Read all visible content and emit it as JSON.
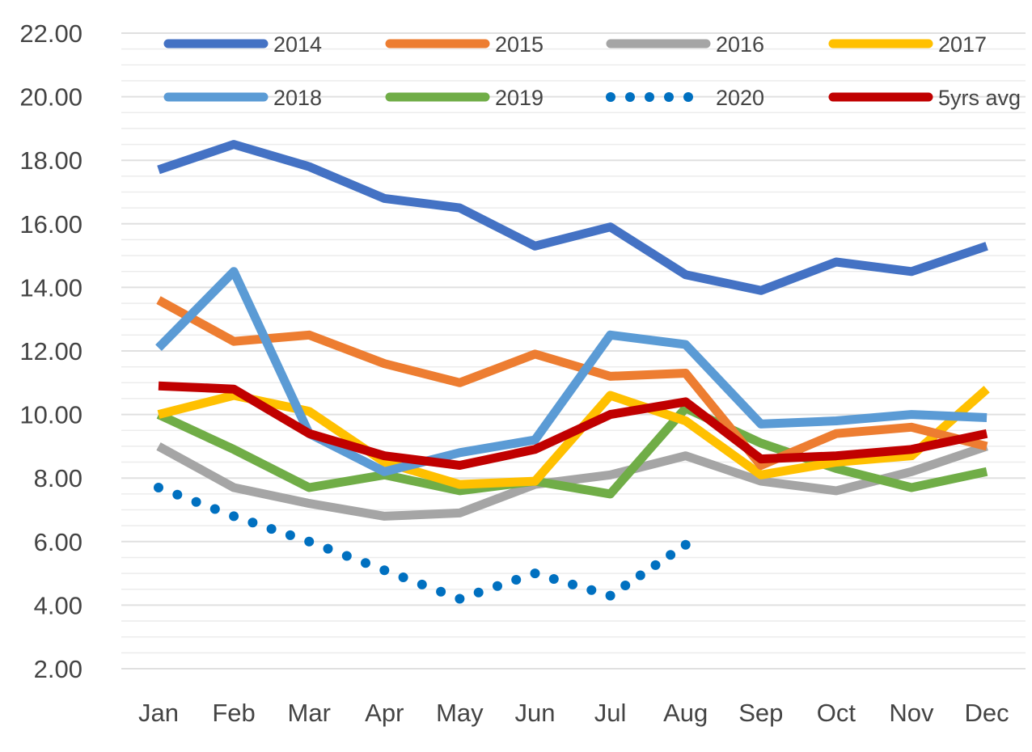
{
  "chart_data": {
    "type": "line",
    "title": "",
    "xlabel": "",
    "ylabel": "",
    "categories": [
      "Jan",
      "Feb",
      "Mar",
      "Apr",
      "May",
      "Jun",
      "Jul",
      "Aug",
      "Sep",
      "Oct",
      "Nov",
      "Dec"
    ],
    "ylim": [
      2.0,
      22.0
    ],
    "yticks": [
      "22.00",
      "20.00",
      "18.00",
      "16.00",
      "14.00",
      "12.00",
      "10.00",
      "8.00",
      "6.00",
      "4.00",
      "2.00"
    ],
    "ytick_values": [
      22,
      20,
      18,
      16,
      14,
      12,
      10,
      8,
      6,
      4,
      2
    ],
    "grid": true,
    "legend_position": "top",
    "series": [
      {
        "name": "2014",
        "color": "#4472C4",
        "style": "solid",
        "values": [
          17.7,
          18.5,
          17.8,
          16.8,
          16.5,
          15.3,
          15.9,
          14.4,
          13.9,
          14.8,
          14.5,
          15.3
        ]
      },
      {
        "name": "2015",
        "color": "#ED7D31",
        "style": "solid",
        "values": [
          13.6,
          12.3,
          12.5,
          11.6,
          11.0,
          11.9,
          11.2,
          11.3,
          8.4,
          9.4,
          9.6,
          9.0
        ]
      },
      {
        "name": "2016",
        "color": "#A5A5A5",
        "style": "solid",
        "values": [
          9.0,
          7.7,
          7.2,
          6.8,
          6.9,
          7.8,
          8.1,
          8.7,
          7.9,
          7.6,
          8.2,
          9.0
        ]
      },
      {
        "name": "2017",
        "color": "#FFC000",
        "style": "solid",
        "values": [
          10.0,
          10.6,
          10.1,
          8.5,
          7.8,
          7.9,
          10.6,
          9.8,
          8.1,
          8.5,
          8.7,
          10.8
        ]
      },
      {
        "name": "2018",
        "color": "#5B9BD5",
        "style": "solid",
        "values": [
          12.1,
          14.5,
          9.4,
          8.2,
          8.8,
          9.2,
          12.5,
          12.2,
          9.7,
          9.8,
          10.0,
          9.9
        ]
      },
      {
        "name": "2019",
        "color": "#70AD47",
        "style": "solid",
        "values": [
          10.0,
          8.9,
          7.7,
          8.1,
          7.6,
          7.9,
          7.5,
          10.2,
          9.1,
          8.3,
          7.7,
          8.2
        ]
      },
      {
        "name": "2020",
        "color": "#0070C0",
        "style": "dotted",
        "values": [
          7.7,
          6.8,
          6.0,
          5.1,
          4.2,
          5.0,
          4.3,
          5.9,
          null,
          null,
          null,
          null
        ]
      },
      {
        "name": "5yrs avg",
        "color": "#C00000",
        "style": "solid",
        "values": [
          10.9,
          10.8,
          9.4,
          8.7,
          8.4,
          8.9,
          10.0,
          10.4,
          8.6,
          8.7,
          8.9,
          9.4
        ]
      }
    ]
  }
}
